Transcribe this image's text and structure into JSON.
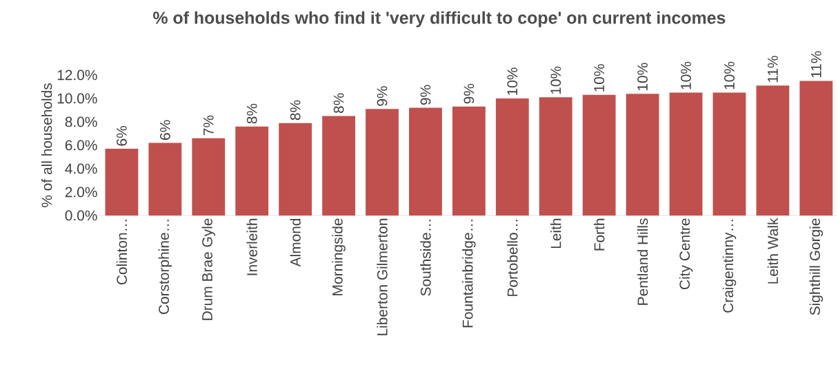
{
  "chart_data": {
    "type": "bar",
    "title": "% of households who find it 'very difficult to cope' on current incomes",
    "ylabel": "% of all households",
    "categories": [
      "Colinton…",
      "Corstorphine…",
      "Drum Brae Gyle",
      "Inverleith",
      "Almond",
      "Morningside",
      "Liberton Gilmerton",
      "Southside…",
      "Fountainbridge…",
      "Portobello…",
      "Leith",
      "Forth",
      "Pentland Hills",
      "City Centre",
      "Craigentinny…",
      "Leith Walk",
      "Sighthill Gorgie"
    ],
    "values": [
      5.7,
      6.2,
      6.6,
      7.6,
      7.9,
      8.5,
      9.1,
      9.2,
      9.3,
      10.0,
      10.1,
      10.3,
      10.4,
      10.5,
      10.5,
      11.1,
      11.5
    ],
    "value_labels": [
      "6%",
      "6%",
      "7%",
      "8%",
      "8%",
      "8%",
      "9%",
      "9%",
      "9%",
      "10%",
      "10%",
      "10%",
      "10%",
      "10%",
      "10%",
      "11%",
      "11%"
    ],
    "color": "#c0504d",
    "ylim": [
      0,
      12
    ],
    "yticks": [
      {
        "value": 0,
        "label": "0.0%"
      },
      {
        "value": 2,
        "label": "2.0%"
      },
      {
        "value": 4,
        "label": "4.0%"
      },
      {
        "value": 6,
        "label": "6.0%"
      },
      {
        "value": 8,
        "label": "8.0%"
      },
      {
        "value": 10,
        "label": "10.0%"
      },
      {
        "value": 12,
        "label": "12.0%"
      }
    ],
    "grid": false
  }
}
